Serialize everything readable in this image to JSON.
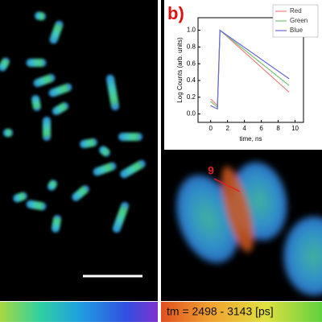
{
  "chart_data": {
    "type": "line",
    "panel_label": "b)",
    "x_label": "time, ns",
    "y_label": "Log Counts (arb. units)",
    "x": [
      0,
      0.8,
      1.1,
      9.3
    ],
    "series": [
      {
        "name": "Red",
        "color": "#f08080",
        "values": [
          0.18,
          0.1,
          1.0,
          0.26
        ]
      },
      {
        "name": "Green",
        "color": "#7cc07c",
        "values": [
          0.15,
          0.08,
          1.0,
          0.34
        ]
      },
      {
        "name": "Blue",
        "color": "#6a6ad8",
        "values": [
          0.1,
          0.06,
          1.0,
          0.42
        ]
      }
    ],
    "xlim": [
      -1.5,
      11
    ],
    "ylim": [
      -0.1,
      1.15
    ],
    "xticks": [
      0,
      2,
      4,
      6,
      8,
      10
    ],
    "yticks": [
      {
        "value": 0,
        "label": "0.0"
      },
      {
        "value": 0.2,
        "label": "0.2"
      },
      {
        "value": 0.4,
        "label": "0.4"
      },
      {
        "value": 0.6,
        "label": "0.6"
      },
      {
        "value": 0.8,
        "label": "0.8"
      },
      {
        "value": 1,
        "label": "1.0"
      }
    ],
    "legend": "upper right"
  },
  "figure": {
    "marker_label": "9",
    "colorbar_label": "tm = 2498 - 3143 [ps]"
  }
}
